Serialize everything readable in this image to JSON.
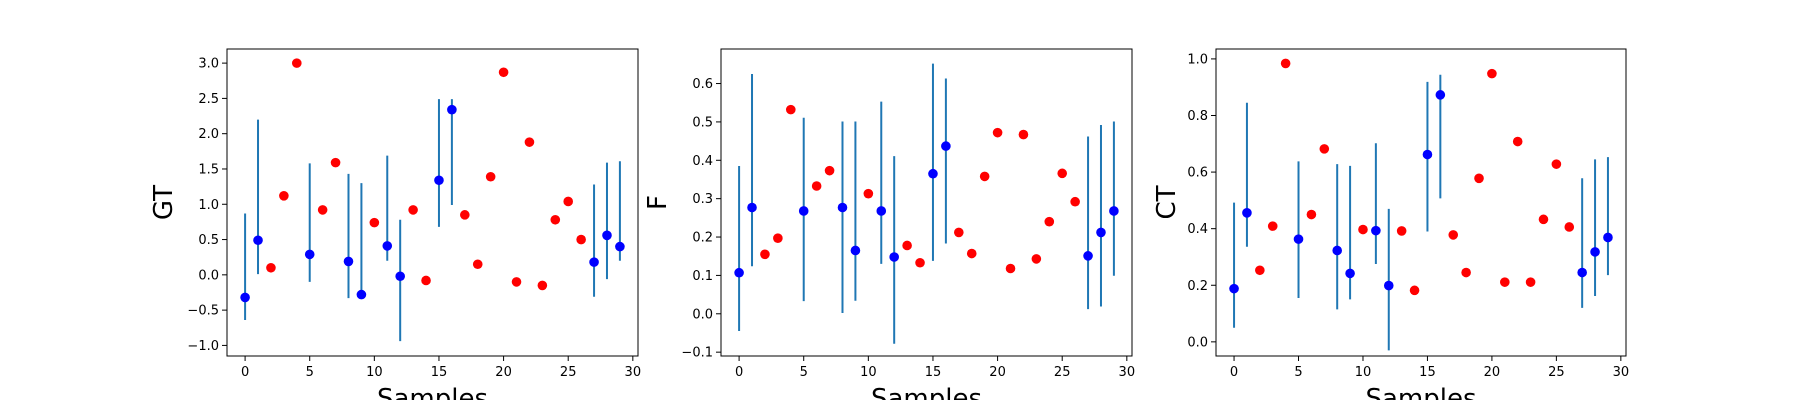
{
  "chart_data": [
    {
      "type": "scatter",
      "ylabel": "GT",
      "xlabel": "Samples",
      "xlim": [
        -1.4,
        30.4
      ],
      "ylim": [
        -1.15,
        3.2
      ],
      "xticks": [
        0,
        5,
        10,
        15,
        20,
        25,
        30
      ],
      "yticks": [
        -1.0,
        -0.5,
        0.0,
        0.5,
        1.0,
        1.5,
        2.0,
        2.5,
        3.0
      ],
      "yticklabels": [
        "−1.0",
        "−0.5",
        "0.0",
        "0.5",
        "1.0",
        "1.5",
        "2.0",
        "2.5",
        "3.0"
      ],
      "red_points": [
        {
          "x": 2,
          "y": 0.1
        },
        {
          "x": 3,
          "y": 1.12
        },
        {
          "x": 4,
          "y": 3.0
        },
        {
          "x": 6,
          "y": 0.92
        },
        {
          "x": 7,
          "y": 1.59
        },
        {
          "x": 10,
          "y": 0.74
        },
        {
          "x": 13,
          "y": 0.92
        },
        {
          "x": 14,
          "y": -0.08
        },
        {
          "x": 17,
          "y": 0.85
        },
        {
          "x": 18,
          "y": 0.15
        },
        {
          "x": 19,
          "y": 1.39
        },
        {
          "x": 20,
          "y": 2.87
        },
        {
          "x": 21,
          "y": -0.1
        },
        {
          "x": 22,
          "y": 1.88
        },
        {
          "x": 23,
          "y": -0.15
        },
        {
          "x": 24,
          "y": 0.78
        },
        {
          "x": 25,
          "y": 1.04
        },
        {
          "x": 26,
          "y": 0.5
        }
      ],
      "blue_points": [
        {
          "x": 0,
          "y": -0.32,
          "lo": -0.64,
          "hi": 0.87
        },
        {
          "x": 1,
          "y": 0.49,
          "lo": 0.01,
          "hi": 2.2
        },
        {
          "x": 5,
          "y": 0.29,
          "lo": -0.1,
          "hi": 1.58
        },
        {
          "x": 8,
          "y": 0.19,
          "lo": -0.33,
          "hi": 1.43
        },
        {
          "x": 9,
          "y": -0.28,
          "lo": -0.33,
          "hi": 1.3
        },
        {
          "x": 11,
          "y": 0.41,
          "lo": 0.2,
          "hi": 1.69
        },
        {
          "x": 12,
          "y": -0.02,
          "lo": -0.94,
          "hi": 0.78
        },
        {
          "x": 15,
          "y": 1.34,
          "lo": 0.68,
          "hi": 2.49
        },
        {
          "x": 16,
          "y": 2.34,
          "lo": 0.99,
          "hi": 2.49
        },
        {
          "x": 27,
          "y": 0.18,
          "lo": -0.31,
          "hi": 1.28
        },
        {
          "x": 28,
          "y": 0.56,
          "lo": -0.06,
          "hi": 1.59
        },
        {
          "x": 29,
          "y": 0.4,
          "lo": 0.2,
          "hi": 1.61
        }
      ]
    },
    {
      "type": "scatter",
      "ylabel": "F",
      "xlabel": "Samples",
      "xlim": [
        -1.4,
        30.4
      ],
      "ylim": [
        -0.11,
        0.69
      ],
      "xticks": [
        0,
        5,
        10,
        15,
        20,
        25,
        30
      ],
      "yticks": [
        -0.1,
        0.0,
        0.1,
        0.2,
        0.3,
        0.4,
        0.5,
        0.6
      ],
      "yticklabels": [
        "−0.1",
        "0.0",
        "0.1",
        "0.2",
        "0.3",
        "0.4",
        "0.5",
        "0.6"
      ],
      "red_points": [
        {
          "x": 2,
          "y": 0.155
        },
        {
          "x": 3,
          "y": 0.197
        },
        {
          "x": 4,
          "y": 0.532
        },
        {
          "x": 6,
          "y": 0.333
        },
        {
          "x": 7,
          "y": 0.373
        },
        {
          "x": 10,
          "y": 0.313
        },
        {
          "x": 13,
          "y": 0.178
        },
        {
          "x": 14,
          "y": 0.133
        },
        {
          "x": 17,
          "y": 0.212
        },
        {
          "x": 18,
          "y": 0.157
        },
        {
          "x": 19,
          "y": 0.358
        },
        {
          "x": 20,
          "y": 0.472
        },
        {
          "x": 21,
          "y": 0.118
        },
        {
          "x": 22,
          "y": 0.467
        },
        {
          "x": 23,
          "y": 0.143
        },
        {
          "x": 24,
          "y": 0.24
        },
        {
          "x": 25,
          "y": 0.366
        },
        {
          "x": 26,
          "y": 0.292
        }
      ],
      "blue_points": [
        {
          "x": 0,
          "y": 0.107,
          "lo": -0.045,
          "hi": 0.385
        },
        {
          "x": 1,
          "y": 0.277,
          "lo": 0.124,
          "hi": 0.625
        },
        {
          "x": 5,
          "y": 0.268,
          "lo": 0.033,
          "hi": 0.511
        },
        {
          "x": 8,
          "y": 0.277,
          "lo": 0.002,
          "hi": 0.501
        },
        {
          "x": 9,
          "y": 0.165,
          "lo": 0.034,
          "hi": 0.501
        },
        {
          "x": 11,
          "y": 0.268,
          "lo": 0.13,
          "hi": 0.553
        },
        {
          "x": 12,
          "y": 0.148,
          "lo": -0.078,
          "hi": 0.411
        },
        {
          "x": 15,
          "y": 0.365,
          "lo": 0.138,
          "hi": 0.652
        },
        {
          "x": 16,
          "y": 0.437,
          "lo": 0.183,
          "hi": 0.613
        },
        {
          "x": 27,
          "y": 0.151,
          "lo": 0.012,
          "hi": 0.462
        },
        {
          "x": 28,
          "y": 0.212,
          "lo": 0.019,
          "hi": 0.492
        },
        {
          "x": 29,
          "y": 0.268,
          "lo": 0.099,
          "hi": 0.501
        }
      ]
    },
    {
      "type": "scatter",
      "ylabel": "CT",
      "xlabel": "Samples",
      "xlim": [
        -1.4,
        30.4
      ],
      "ylim": [
        -0.05,
        1.035
      ],
      "xticks": [
        0,
        5,
        10,
        15,
        20,
        25,
        30
      ],
      "yticks": [
        0.0,
        0.2,
        0.4,
        0.6,
        0.8,
        1.0
      ],
      "yticklabels": [
        "0.0",
        "0.2",
        "0.4",
        "0.6",
        "0.8",
        "1.0"
      ],
      "red_points": [
        {
          "x": 2,
          "y": 0.253
        },
        {
          "x": 3,
          "y": 0.409
        },
        {
          "x": 4,
          "y": 0.984
        },
        {
          "x": 6,
          "y": 0.45
        },
        {
          "x": 7,
          "y": 0.682
        },
        {
          "x": 10,
          "y": 0.397
        },
        {
          "x": 13,
          "y": 0.392
        },
        {
          "x": 14,
          "y": 0.182
        },
        {
          "x": 17,
          "y": 0.378
        },
        {
          "x": 18,
          "y": 0.245
        },
        {
          "x": 19,
          "y": 0.578
        },
        {
          "x": 20,
          "y": 0.948
        },
        {
          "x": 21,
          "y": 0.211
        },
        {
          "x": 22,
          "y": 0.708
        },
        {
          "x": 23,
          "y": 0.211
        },
        {
          "x": 24,
          "y": 0.433
        },
        {
          "x": 25,
          "y": 0.628
        },
        {
          "x": 26,
          "y": 0.406
        }
      ],
      "blue_points": [
        {
          "x": 0,
          "y": 0.188,
          "lo": 0.05,
          "hi": 0.492
        },
        {
          "x": 1,
          "y": 0.456,
          "lo": 0.336,
          "hi": 0.845
        },
        {
          "x": 5,
          "y": 0.363,
          "lo": 0.155,
          "hi": 0.638
        },
        {
          "x": 8,
          "y": 0.323,
          "lo": 0.115,
          "hi": 0.628
        },
        {
          "x": 9,
          "y": 0.242,
          "lo": 0.15,
          "hi": 0.622
        },
        {
          "x": 11,
          "y": 0.393,
          "lo": 0.275,
          "hi": 0.702
        },
        {
          "x": 12,
          "y": 0.199,
          "lo": -0.03,
          "hi": 0.47
        },
        {
          "x": 15,
          "y": 0.662,
          "lo": 0.39,
          "hi": 0.919
        },
        {
          "x": 16,
          "y": 0.873,
          "lo": 0.507,
          "hi": 0.944
        },
        {
          "x": 27,
          "y": 0.245,
          "lo": 0.12,
          "hi": 0.578
        },
        {
          "x": 28,
          "y": 0.318,
          "lo": 0.162,
          "hi": 0.645
        },
        {
          "x": 29,
          "y": 0.369,
          "lo": 0.236,
          "hi": 0.653
        }
      ]
    }
  ],
  "colors": {
    "red_points": "#ff0000",
    "blue_points": "#0000ff",
    "error_bars": "#1f77b4"
  }
}
